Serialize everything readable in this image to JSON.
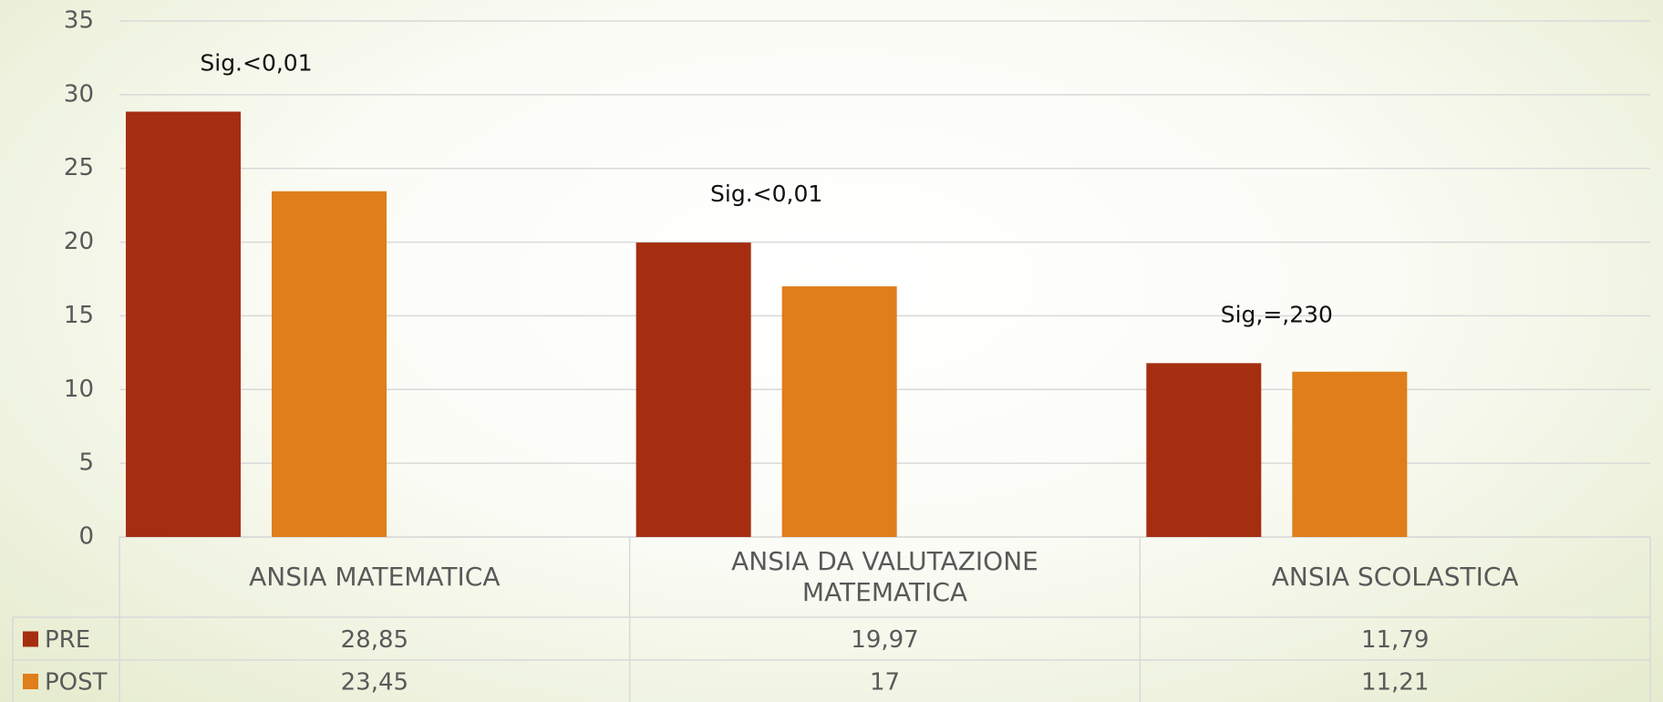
{
  "chart_data": {
    "type": "bar",
    "categories": [
      "ANSIA MATEMATICA",
      "ANSIA DA VALUTAZIONE MATEMATICA",
      "ANSIA SCOLASTICA"
    ],
    "series": [
      {
        "name": "PRE",
        "color": "#a52e10",
        "values": [
          28.85,
          19.97,
          11.79
        ],
        "value_labels": [
          "28,85",
          "19,97",
          "11,79"
        ]
      },
      {
        "name": "POST",
        "color": "#df7e1a",
        "values": [
          23.45,
          17,
          11.21
        ],
        "value_labels": [
          "23,45",
          "17",
          "11,21"
        ]
      }
    ],
    "annotations": [
      "Sig.<0,01",
      "Sig.<0,01",
      "Sig,=,230"
    ],
    "ylim": [
      0,
      35
    ],
    "yticks": [
      0,
      5,
      10,
      15,
      20,
      25,
      30,
      35
    ],
    "grid": true
  }
}
